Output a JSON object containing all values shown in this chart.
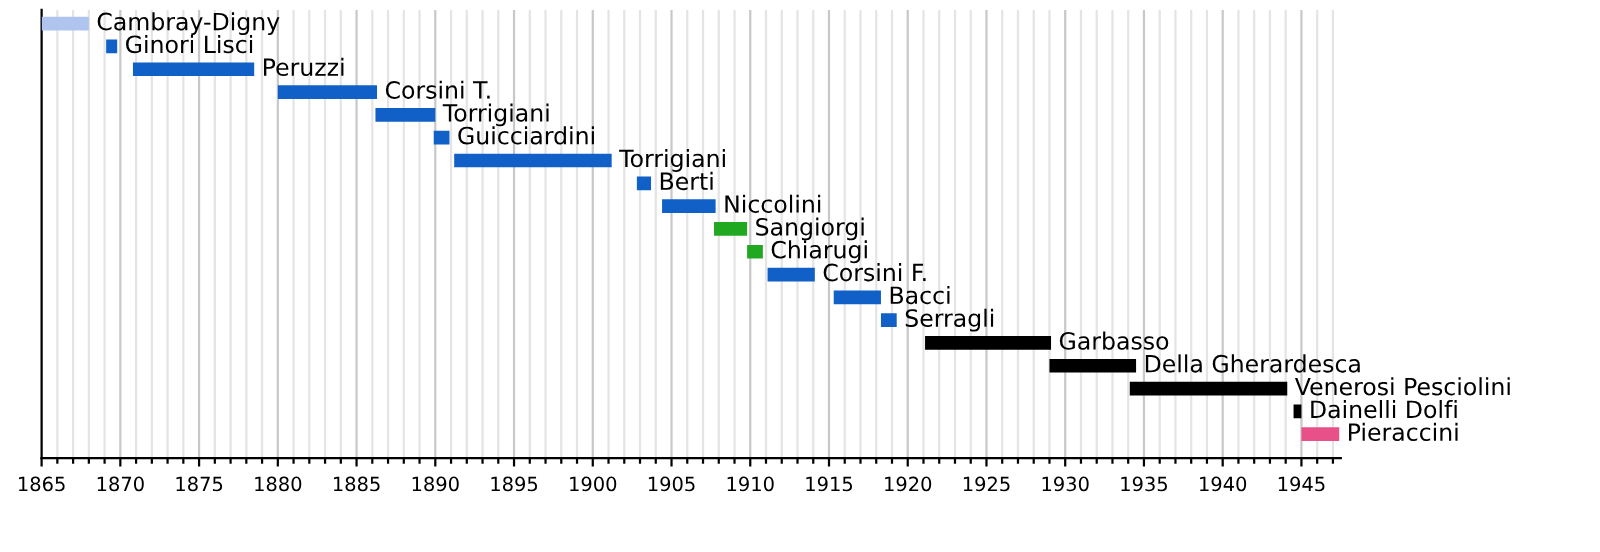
{
  "chart_data": {
    "type": "bar",
    "orientation": "horizontal",
    "categories": [
      "Cambray-Digny",
      "Ginori Lisci",
      "Peruzzi",
      "Corsini T.",
      "Torrigiani",
      "Guicciardini",
      "Torrigiani",
      "Berti",
      "Niccolini",
      "Sangiorgi",
      "Chiarugi",
      "Corsini F.",
      "Bacci",
      "Serragli",
      "Garbasso",
      "Della Gherardesca",
      "Venerosi Pesciolini",
      "Dainelli Dolfi",
      "Pieraccini"
    ],
    "base": [
      1865,
      1869.1,
      1870.8,
      1880,
      1886.2,
      1889.9,
      1891.2,
      1902.8,
      1904.4,
      1907.7,
      1909.8,
      1911.1,
      1915.3,
      1918.3,
      1921.1,
      1929,
      1934.1,
      1944.5,
      1945
    ],
    "values": [
      3,
      0.7,
      7.7,
      6.3,
      3.8,
      1,
      10,
      0.9,
      3.4,
      2.1,
      1,
      3,
      3,
      1,
      8,
      5.5,
      10,
      0.5,
      2.4
    ],
    "colors": [
      "#b0c4f0",
      "#1060c8",
      "#1060c8",
      "#1060c8",
      "#1060c8",
      "#1060c8",
      "#1060c8",
      "#1060c8",
      "#1060c8",
      "#20a820",
      "#20a820",
      "#1060c8",
      "#1060c8",
      "#1060c8",
      "#000000",
      "#000000",
      "#000000",
      "#000000",
      "#e8508a"
    ],
    "xlim": [
      1865,
      1947.5
    ],
    "xticks": [
      1865,
      {
        "value": 1866,
        "label": null
      },
      {
        "value": 1867,
        "label": null
      },
      {
        "value": 1868,
        "label": null
      },
      {
        "value": 1869,
        "label": null
      },
      1870,
      {
        "value": 1871,
        "label": null
      },
      {
        "value": 1872,
        "label": null
      },
      {
        "value": 1873,
        "label": null
      },
      {
        "value": 1874,
        "label": null
      },
      1875,
      {
        "value": 1876,
        "label": null
      },
      {
        "value": 1877,
        "label": null
      },
      {
        "value": 1878,
        "label": null
      },
      {
        "value": 1879,
        "label": null
      },
      1880,
      {
        "value": 1881,
        "label": null
      },
      {
        "value": 1882,
        "label": null
      },
      {
        "value": 1883,
        "label": null
      },
      {
        "value": 1884,
        "label": null
      },
      1885,
      {
        "value": 1886,
        "label": null
      },
      {
        "value": 1887,
        "label": null
      },
      {
        "value": 1888,
        "label": null
      },
      {
        "value": 1889,
        "label": null
      },
      1890,
      {
        "value": 1891,
        "label": null
      },
      {
        "value": 1892,
        "label": null
      },
      {
        "value": 1893,
        "label": null
      },
      {
        "value": 1894,
        "label": null
      },
      1895,
      {
        "value": 1896,
        "label": null
      },
      {
        "value": 1897,
        "label": null
      },
      {
        "value": 1898,
        "label": null
      },
      {
        "value": 1899,
        "label": null
      },
      1900,
      {
        "value": 1901,
        "label": null
      },
      {
        "value": 1902,
        "label": null
      },
      {
        "value": 1903,
        "label": null
      },
      {
        "value": 1904,
        "label": null
      },
      1905,
      {
        "value": 1906,
        "label": null
      },
      {
        "value": 1907,
        "label": null
      },
      {
        "value": 1908,
        "label": null
      },
      {
        "value": 1909,
        "label": null
      },
      1910,
      {
        "value": 1911,
        "label": null
      },
      {
        "value": 1912,
        "label": null
      },
      {
        "value": 1913,
        "label": null
      },
      {
        "value": 1914,
        "label": null
      },
      1915,
      {
        "value": 1916,
        "label": null
      },
      {
        "value": 1917,
        "label": null
      },
      {
        "value": 1918,
        "label": null
      },
      {
        "value": 1919,
        "label": null
      },
      1920,
      {
        "value": 1921,
        "label": null
      },
      {
        "value": 1922,
        "label": null
      },
      {
        "value": 1923,
        "label": null
      },
      {
        "value": 1924,
        "label": null
      },
      1925,
      {
        "value": 1926,
        "label": null
      },
      {
        "value": 1927,
        "label": null
      },
      {
        "value": 1928,
        "label": null
      },
      {
        "value": 1929,
        "label": null
      },
      1930,
      {
        "value": 1931,
        "label": null
      },
      {
        "value": 1932,
        "label": null
      },
      {
        "value": 1933,
        "label": null
      },
      {
        "value": 1934,
        "label": null
      },
      1935,
      {
        "value": 1936,
        "label": null
      },
      {
        "value": 1937,
        "label": null
      },
      {
        "value": 1938,
        "label": null
      },
      {
        "value": 1939,
        "label": null
      },
      1940,
      {
        "value": 1941,
        "label": null
      },
      {
        "value": 1942,
        "label": null
      },
      {
        "value": 1943,
        "label": null
      },
      {
        "value": 1944,
        "label": null
      },
      1945,
      {
        "value": 1946,
        "label": null
      },
      {
        "value": 1947,
        "label": null
      }
    ],
    "grid": "x",
    "tick_labels": "x"
  }
}
